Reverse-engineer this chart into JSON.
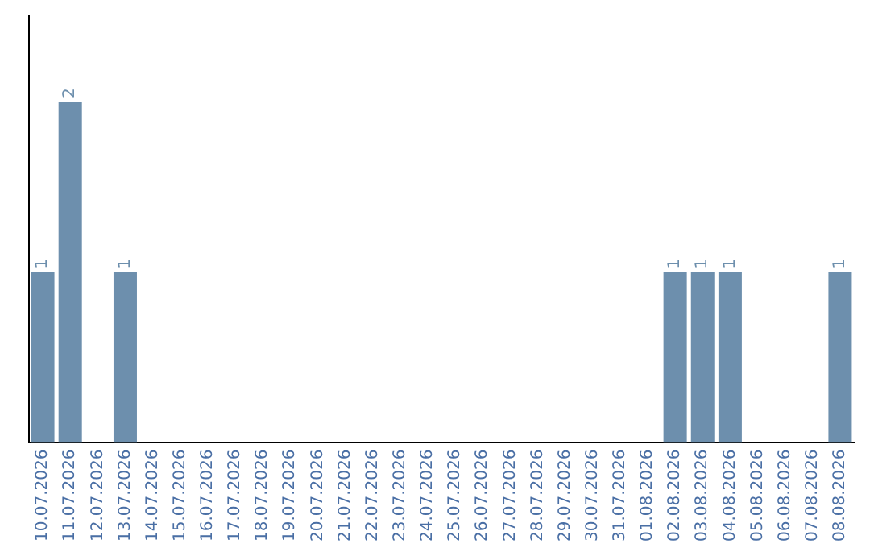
{
  "chart_data": {
    "type": "bar",
    "categories": [
      "10.07.2026",
      "11.07.2026",
      "12.07.2026",
      "13.07.2026",
      "14.07.2026",
      "15.07.2026",
      "16.07.2026",
      "17.07.2026",
      "18.07.2026",
      "19.07.2026",
      "20.07.2026",
      "21.07.2026",
      "22.07.2026",
      "23.07.2026",
      "24.07.2026",
      "25.07.2026",
      "26.07.2026",
      "27.07.2026",
      "28.07.2026",
      "29.07.2026",
      "30.07.2026",
      "31.07.2026",
      "01.08.2026",
      "02.08.2026",
      "03.08.2026",
      "04.08.2026",
      "05.08.2026",
      "06.08.2026",
      "07.08.2026",
      "08.08.2026"
    ],
    "values": [
      1,
      2,
      0,
      1,
      0,
      0,
      0,
      0,
      0,
      0,
      0,
      0,
      0,
      0,
      0,
      0,
      0,
      0,
      0,
      0,
      0,
      0,
      0,
      1,
      1,
      1,
      0,
      0,
      0,
      1
    ],
    "value_labels": [
      "1",
      "2",
      null,
      "1",
      null,
      null,
      null,
      null,
      null,
      null,
      null,
      null,
      null,
      null,
      null,
      null,
      null,
      null,
      null,
      null,
      null,
      null,
      null,
      "1",
      "1",
      "1",
      null,
      null,
      null,
      "1"
    ],
    "color": "#6d8fad",
    "grid": false,
    "legend": false
  }
}
